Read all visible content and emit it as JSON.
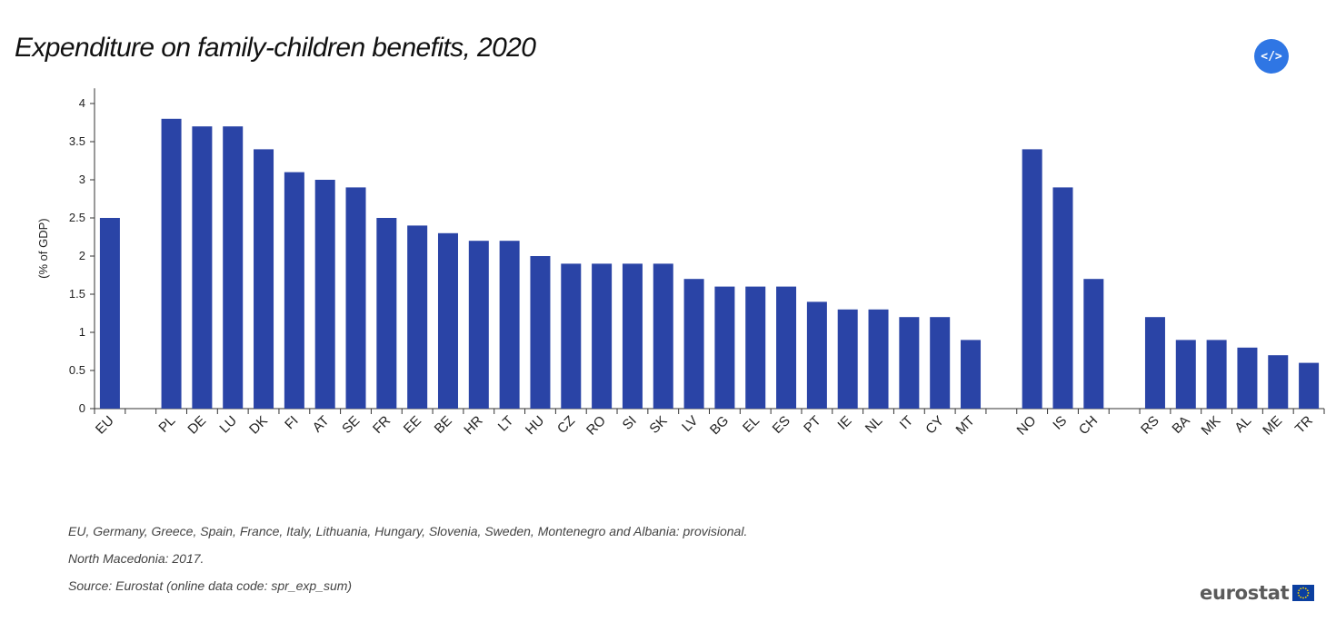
{
  "title": "Expenditure on family-children benefits, 2020",
  "embed_button": {
    "label": "</>"
  },
  "notes": [
    "EU, Germany, Greece, Spain, France, Italy, Lithuania, Hungary, Slovenia, Sweden, Montenegro and Albania: provisional.",
    "North Macedonia: 2017.",
    "Source: Eurostat (online data code: spr_exp_sum)"
  ],
  "logo": {
    "text": "eurostat",
    "flag_color": "#0b3fa0",
    "star_color": "#ffd700"
  },
  "chart_data": {
    "type": "bar",
    "categories": [
      "EU",
      "",
      "PL",
      "DE",
      "LU",
      "DK",
      "FI",
      "AT",
      "SE",
      "FR",
      "EE",
      "BE",
      "HR",
      "LT",
      "HU",
      "CZ",
      "RO",
      "SI",
      "SK",
      "LV",
      "BG",
      "EL",
      "ES",
      "PT",
      "IE",
      "NL",
      "IT",
      "CY",
      "MT",
      "",
      "NO",
      "IS",
      "CH",
      "",
      "RS",
      "BA",
      "MK",
      "AL",
      "ME",
      "TR"
    ],
    "values": [
      2.5,
      null,
      3.8,
      3.7,
      3.7,
      3.4,
      3.1,
      3.0,
      2.9,
      2.5,
      2.4,
      2.3,
      2.2,
      2.2,
      2.0,
      1.9,
      1.9,
      1.9,
      1.9,
      1.7,
      1.6,
      1.6,
      1.6,
      1.4,
      1.3,
      1.3,
      1.2,
      1.2,
      0.9,
      null,
      3.4,
      2.9,
      1.7,
      null,
      1.2,
      0.9,
      0.9,
      0.8,
      0.7,
      0.6
    ],
    "ylabel": "(% of GDP)",
    "ylim": [
      0,
      4.2
    ],
    "yticks": [
      0,
      0.5,
      1,
      1.5,
      2,
      2.5,
      3,
      3.5,
      4
    ],
    "ytick_labels": [
      "0",
      "0.5",
      "1",
      "1.5",
      "2",
      "2.5",
      "3",
      "3.5",
      "4"
    ],
    "bar_color": "#2a44a6",
    "grid": false,
    "legend": "none"
  }
}
